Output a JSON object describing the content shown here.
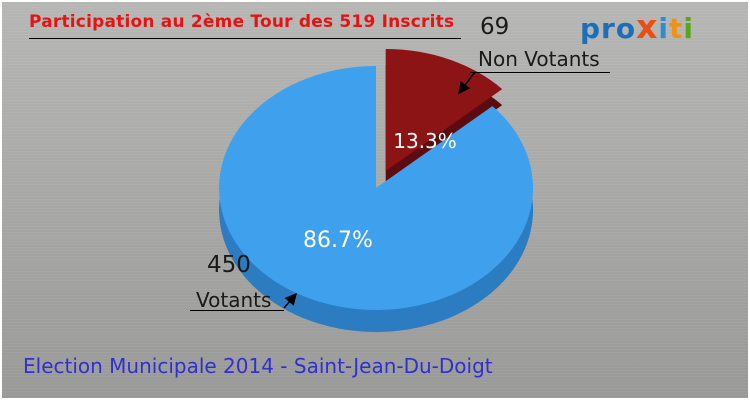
{
  "header": {
    "title": "Participation au 2ème Tour des 519 Inscrits",
    "title_color": "#e41414",
    "logo_letters": [
      {
        "ch": "p",
        "color": "#1b6fb8"
      },
      {
        "ch": "r",
        "color": "#1b6fb8"
      },
      {
        "ch": "o",
        "color": "#1b6fb8"
      },
      {
        "ch": "x",
        "color": "#e94e12",
        "big": true
      },
      {
        "ch": "i",
        "color": "#2a8fd0"
      },
      {
        "ch": "t",
        "color": "#f29111"
      },
      {
        "ch": "i",
        "color": "#57a818"
      }
    ]
  },
  "chart_data": {
    "type": "pie",
    "title": "Participation au 2ème Tour des 519 Inscrits",
    "total_inscrits": 519,
    "start_angle_deg": -90,
    "legend_position": "callouts",
    "effect_3d": true,
    "slices": [
      {
        "label": "Votants",
        "value": 450,
        "pct_label": "86.7%",
        "color": "#3fa0ee",
        "side_color": "#2b7cc0",
        "exploded": false
      },
      {
        "label": "Non Votants",
        "value": 69,
        "pct_label": "13.3%",
        "color": "#8c1414",
        "side_color": "#5c0c10",
        "exploded": true
      }
    ]
  },
  "callouts": {
    "votants": {
      "value": "450",
      "label": "Votants"
    },
    "non_votants": {
      "value": "69",
      "label": "Non Votants"
    }
  },
  "footer": {
    "text": "Election Municipale 2014 - Saint-Jean-Du-Doigt",
    "color": "#3030d2"
  }
}
